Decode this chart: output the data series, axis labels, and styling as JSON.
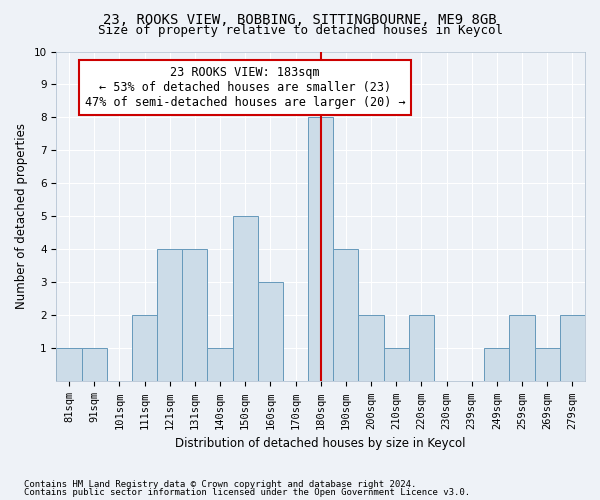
{
  "title1": "23, ROOKS VIEW, BOBBING, SITTINGBOURNE, ME9 8GB",
  "title2": "Size of property relative to detached houses in Keycol",
  "xlabel": "Distribution of detached houses by size in Keycol",
  "ylabel": "Number of detached properties",
  "categories": [
    "81sqm",
    "91sqm",
    "101sqm",
    "111sqm",
    "121sqm",
    "131sqm",
    "140sqm",
    "150sqm",
    "160sqm",
    "170sqm",
    "180sqm",
    "190sqm",
    "200sqm",
    "210sqm",
    "220sqm",
    "230sqm",
    "239sqm",
    "249sqm",
    "259sqm",
    "269sqm",
    "279sqm"
  ],
  "values": [
    1,
    1,
    0,
    2,
    4,
    4,
    1,
    5,
    3,
    0,
    8,
    4,
    2,
    1,
    2,
    0,
    0,
    1,
    2,
    1,
    2
  ],
  "bar_color": "#ccdce8",
  "bar_edge_color": "#6699bb",
  "highlight_line_idx": 10,
  "highlight_line_color": "#cc0000",
  "annotation_text": "23 ROOKS VIEW: 183sqm\n← 53% of detached houses are smaller (23)\n47% of semi-detached houses are larger (20) →",
  "annotation_box_color": "#ffffff",
  "annotation_box_edge": "#cc0000",
  "ylim": [
    0,
    10
  ],
  "yticks": [
    0,
    1,
    2,
    3,
    4,
    5,
    6,
    7,
    8,
    9,
    10
  ],
  "footer1": "Contains HM Land Registry data © Crown copyright and database right 2024.",
  "footer2": "Contains public sector information licensed under the Open Government Licence v3.0.",
  "background_color": "#eef2f7",
  "grid_color": "#ffffff",
  "title1_fontsize": 10,
  "title2_fontsize": 9,
  "axis_label_fontsize": 8.5,
  "tick_fontsize": 7.5,
  "annotation_fontsize": 8.5,
  "footer_fontsize": 6.5
}
